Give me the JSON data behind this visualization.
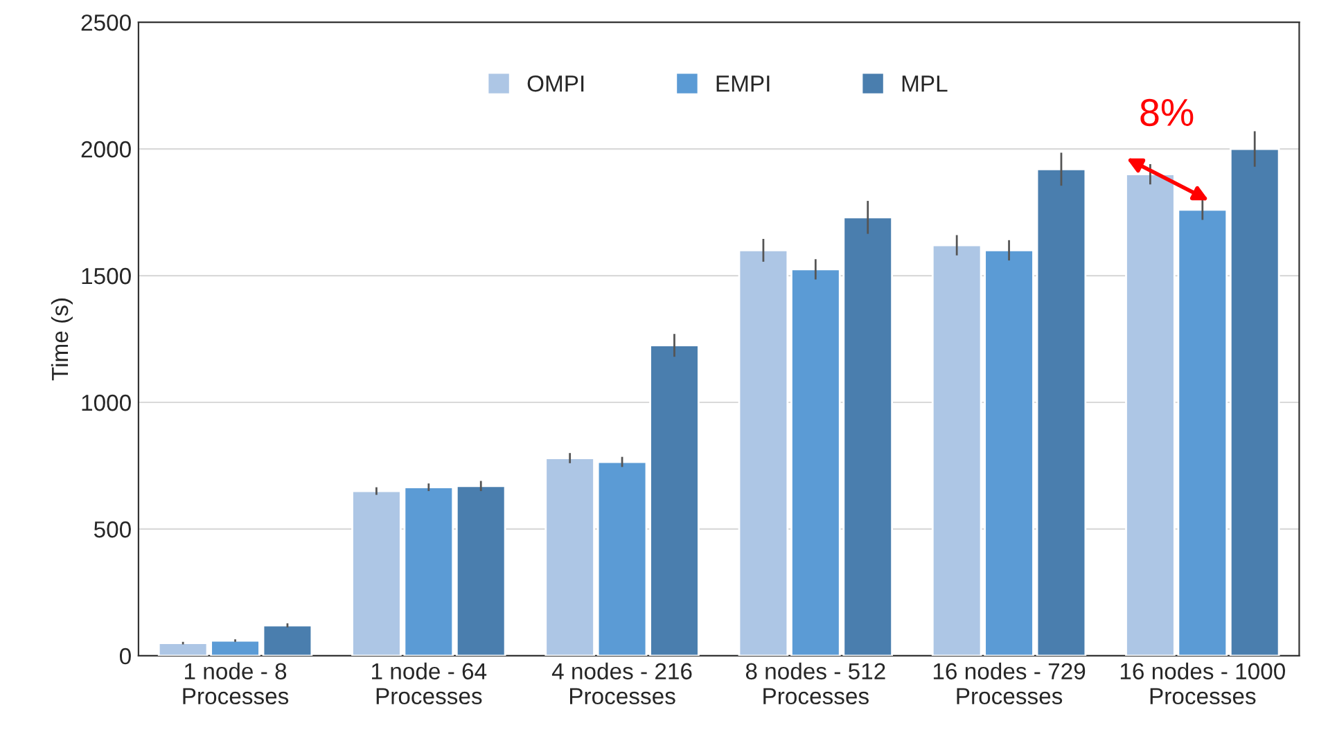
{
  "chart_data": {
    "type": "bar",
    "ylabel": "Time (s)",
    "categories": [
      "1 node - 8\nProcesses",
      "1 node - 64\nProcesses",
      "4 nodes - 216\nProcesses",
      "8 nodes - 512\nProcesses",
      "16 nodes - 729\nProcesses",
      "16 nodes - 1000\nProcesses"
    ],
    "series": [
      {
        "name": "OMPI",
        "color": "#adc6e5",
        "values": [
          50,
          650,
          780,
          1600,
          1620,
          1900
        ],
        "errors": [
          5,
          15,
          20,
          45,
          40,
          40
        ]
      },
      {
        "name": "EMPI",
        "color": "#5b9bd5",
        "values": [
          60,
          665,
          765,
          1525,
          1600,
          1760
        ],
        "errors": [
          5,
          15,
          20,
          40,
          40,
          40
        ]
      },
      {
        "name": "MPL",
        "color": "#4a7eae",
        "values": [
          120,
          670,
          1225,
          1730,
          1920,
          2000
        ],
        "errors": [
          8,
          20,
          45,
          65,
          65,
          70
        ]
      }
    ],
    "ylim": [
      0,
      2500
    ],
    "yticks": [
      0,
      500,
      1000,
      1500,
      2000,
      2500
    ],
    "grid": "y",
    "legend": "top",
    "annotations": [
      "8%"
    ]
  }
}
